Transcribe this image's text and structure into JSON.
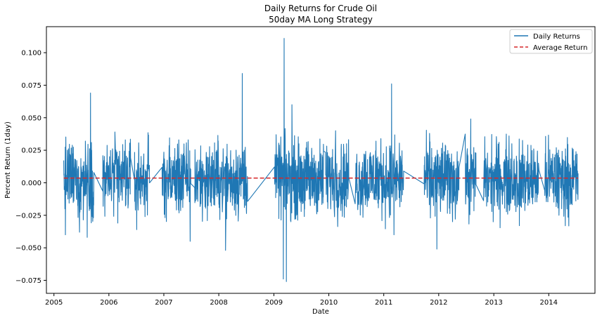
{
  "chart_data": {
    "type": "line",
    "title": "Daily Returns for Crude Oil",
    "subtitle": "50day MA Long Strategy",
    "xlabel": "Date",
    "ylabel": "Percent Return (1day)",
    "xlim": [
      "2004-11-12",
      "2014-11-04"
    ],
    "ylim": [
      -0.085,
      0.12
    ],
    "x_ticks": [
      "2005",
      "2006",
      "2007",
      "2008",
      "2009",
      "2010",
      "2011",
      "2012",
      "2013",
      "2014"
    ],
    "y_ticks": [
      -0.075,
      -0.05,
      -0.025,
      0.0,
      0.025,
      0.05,
      0.075,
      0.1
    ],
    "y_tick_labels": [
      "−0.075",
      "−0.050",
      "−0.025",
      "0.000",
      "0.025",
      "0.050",
      "0.075",
      "0.100"
    ],
    "grid": false,
    "legend_position": "top-right",
    "colors": {
      "daily": "#1f77b4",
      "average": "#d62728"
    },
    "series": [
      {
        "name": "Daily Returns",
        "style": "solid",
        "segments": [
          {
            "start": "2005-03-07",
            "end": "2005-09-25",
            "peaks": [
              {
                "x": "2005-03-18",
                "y": -0.04
              },
              {
                "x": "2005-05-28",
                "y": 0.051
              },
              {
                "x": "2005-06-20",
                "y": -0.038
              },
              {
                "x": "2005-09-01",
                "y": 0.069
              },
              {
                "x": "2005-08-10",
                "y": -0.042
              }
            ]
          },
          {
            "start": "2005-11-20",
            "end": "2006-05-25",
            "peaks": [
              {
                "x": "2006-02-10",
                "y": 0.039
              },
              {
                "x": "2006-03-01",
                "y": -0.031
              },
              {
                "x": "2006-04-20",
                "y": 0.033
              }
            ]
          },
          {
            "start": "2006-06-20",
            "end": "2006-09-28",
            "peaks": [
              {
                "x": "2006-08-20",
                "y": 0.03
              },
              {
                "x": "2006-07-05",
                "y": -0.036
              }
            ]
          },
          {
            "start": "2006-12-20",
            "end": "2007-05-20",
            "peaks": [
              {
                "x": "2007-01-20",
                "y": -0.043
              },
              {
                "x": "2007-04-10",
                "y": 0.033
              }
            ]
          },
          {
            "start": "2007-05-25",
            "end": "2007-07-01",
            "peaks": [
              {
                "x": "2007-06-10",
                "y": 0.04
              },
              {
                "x": "2007-06-25",
                "y": -0.045
              }
            ]
          },
          {
            "start": "2007-07-25",
            "end": "2008-07-10",
            "peaks": [
              {
                "x": "2008-02-15",
                "y": -0.052
              },
              {
                "x": "2008-06-05",
                "y": 0.084
              },
              {
                "x": "2007-11-10",
                "y": 0.045
              }
            ]
          },
          {
            "start": "2009-01-05",
            "end": "2009-11-28",
            "peaks": [
              {
                "x": "2009-03-10",
                "y": 0.111
              },
              {
                "x": "2009-03-05",
                "y": -0.074
              },
              {
                "x": "2009-03-25",
                "y": -0.076
              },
              {
                "x": "2009-05-01",
                "y": 0.06
              }
            ]
          },
          {
            "start": "2009-12-10",
            "end": "2010-05-15",
            "peaks": [
              {
                "x": "2010-02-15",
                "y": 0.04
              },
              {
                "x": "2010-04-10",
                "y": -0.032
              }
            ]
          },
          {
            "start": "2010-06-25",
            "end": "2011-05-15",
            "peaks": [
              {
                "x": "2011-02-22",
                "y": 0.076
              },
              {
                "x": "2011-03-10",
                "y": -0.04
              },
              {
                "x": "2010-11-10",
                "y": 0.032
              }
            ]
          },
          {
            "start": "2011-09-25",
            "end": "2012-05-15",
            "peaks": [
              {
                "x": "2011-12-20",
                "y": -0.051
              },
              {
                "x": "2011-11-01",
                "y": 0.038
              }
            ]
          },
          {
            "start": "2012-06-25",
            "end": "2012-09-05",
            "peaks": [
              {
                "x": "2012-08-01",
                "y": 0.049
              },
              {
                "x": "2012-07-15",
                "y": -0.039
              }
            ]
          },
          {
            "start": "2012-10-25",
            "end": "2013-10-28",
            "peaks": [
              {
                "x": "2013-05-01",
                "y": 0.03
              },
              {
                "x": "2013-06-20",
                "y": -0.033
              }
            ]
          },
          {
            "start": "2013-12-05",
            "end": "2014-07-15",
            "peaks": [
              {
                "x": "2014-02-20",
                "y": 0.027
              },
              {
                "x": "2014-03-10",
                "y": -0.025
              }
            ]
          }
        ]
      },
      {
        "name": "Average Return",
        "style": "dashed",
        "value": 0.0036
      }
    ]
  }
}
